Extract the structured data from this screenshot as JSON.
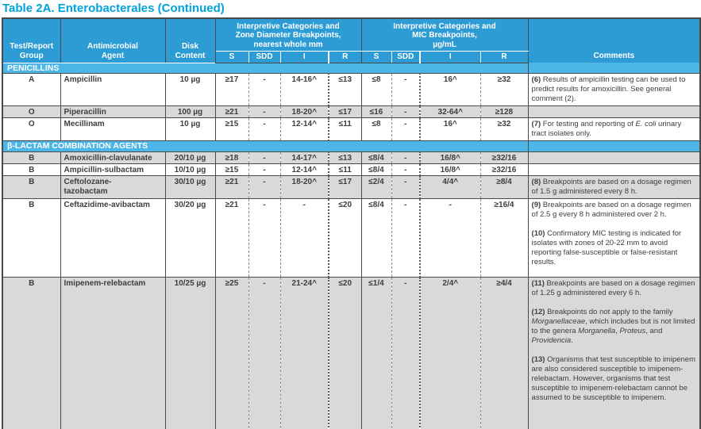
{
  "title": "Table 2A. Enterobacterales (Continued)",
  "colors": {
    "title_accent": "#00A3DC",
    "header_bg": "#2E9CD4",
    "section_bg": "#4DB6E8",
    "shaded_row_bg": "#D9D9D9",
    "border": "#4A4A4A",
    "body_text": "#3E3E3E"
  },
  "header": {
    "group": "Test/Report\nGroup",
    "agent": "Antimicrobial\nAgent",
    "disk": "Disk\nContent",
    "zone_group": "Interpretive Categories and\nZone Diameter Breakpoints,\nnearest whole mm",
    "mic_group": "Interpretive Categories and\nMIC Breakpoints,\nµg/mL",
    "sub": {
      "s": "S",
      "sdd": "SDD",
      "i": "I",
      "r": "R"
    },
    "comments": "Comments"
  },
  "sections": [
    {
      "label": "PENICILLINS",
      "rows": [
        {
          "group": "A",
          "agent": "Ampicillin",
          "disk": "10 µg",
          "zone": {
            "s": "≥17",
            "sdd": "-",
            "i": "14-16^",
            "r": "≤13"
          },
          "mic": {
            "s": "≤8",
            "sdd": "-",
            "i": "16^",
            "r": "≥32"
          },
          "comment": [
            [
              {
                "t": "(6)",
                "b": true
              },
              {
                "t": " Results of ampicillin testing can be used to predict results for amoxicillin. See general comment (2)."
              }
            ]
          ]
        },
        {
          "group": "O",
          "agent": "Piperacillin",
          "disk": "100 µg",
          "zone": {
            "s": "≥21",
            "sdd": "-",
            "i": "18-20^",
            "r": "≤17"
          },
          "mic": {
            "s": "≤16",
            "sdd": "-",
            "i": "32-64^",
            "r": "≥128"
          }
        },
        {
          "group": "O",
          "agent": "Mecillinam",
          "disk": "10 µg",
          "zone": {
            "s": "≥15",
            "sdd": "-",
            "i": "12-14^",
            "r": "≤11"
          },
          "mic": {
            "s": "≤8",
            "sdd": "-",
            "i": "16^",
            "r": "≥32"
          },
          "comment": [
            [
              {
                "t": "(7)",
                "b": true
              },
              {
                "t": " For testing and reporting of "
              },
              {
                "t": "E. coli",
                "i": true
              },
              {
                "t": " urinary tract isolates only."
              }
            ]
          ]
        }
      ]
    },
    {
      "label": "β-LACTAM COMBINATION AGENTS",
      "rows": [
        {
          "group": "B",
          "agent": "Amoxicillin-clavulanate",
          "disk": "20/10 µg",
          "zone": {
            "s": "≥18",
            "sdd": "-",
            "i": "14-17^",
            "r": "≤13"
          },
          "mic": {
            "s": "≤8/4",
            "sdd": "-",
            "i": "16/8^",
            "r": "≥32/16"
          }
        },
        {
          "group": "B",
          "agent": "Ampicillin-sulbactam",
          "disk": "10/10 µg",
          "zone": {
            "s": "≥15",
            "sdd": "-",
            "i": "12-14^",
            "r": "≤11"
          },
          "mic": {
            "s": "≤8/4",
            "sdd": "-",
            "i": "16/8^",
            "r": "≥32/16"
          }
        },
        {
          "group": "B",
          "agent": "Ceftolozane-\ntazobactam",
          "disk": "30/10 µg",
          "zone": {
            "s": "≥21",
            "sdd": "-",
            "i": "18-20^",
            "r": "≤17"
          },
          "mic": {
            "s": "≤2/4",
            "sdd": "-",
            "i": "4/4^",
            "r": "≥8/4"
          },
          "comment": [
            [
              {
                "t": "(8)",
                "b": true
              },
              {
                "t": " Breakpoints are based on a dosage regimen of 1.5 g administered every 8 h."
              }
            ]
          ]
        },
        {
          "group": "B",
          "agent": "Ceftazidime-avibactam",
          "disk": "30/20 µg",
          "zone": {
            "s": "≥21",
            "sdd": "-",
            "i": "-",
            "r": "≤20"
          },
          "mic": {
            "s": "≤8/4",
            "sdd": "-",
            "i": "-",
            "r": "≥16/4"
          },
          "comment": [
            [
              {
                "t": "(9)",
                "b": true
              },
              {
                "t": " Breakpoints are based on a dosage regimen of 2.5 g every 8 h administered over 2 h."
              }
            ],
            [
              {
                "t": "(10)",
                "b": true
              },
              {
                "t": " Confirmatory MIC testing is indicated for isolates with zones of 20-22 mm to avoid reporting false-susceptible or false-resistant results."
              }
            ]
          ]
        },
        {
          "group": "B",
          "agent": "Imipenem-relebactam",
          "disk": "10/25 µg",
          "zone": {
            "s": "≥25",
            "sdd": "-",
            "i": "21-24^",
            "r": "≤20"
          },
          "mic": {
            "s": "≤1/4",
            "sdd": "-",
            "i": "2/4^",
            "r": "≥4/4"
          },
          "comment": [
            [
              {
                "t": "(11)",
                "b": true
              },
              {
                "t": " Breakpoints are based on a dosage regimen of 1.25 g administered every 6 h."
              }
            ],
            [
              {
                "t": "(12)",
                "b": true
              },
              {
                "t": " Breakpoints do not apply to the family "
              },
              {
                "t": "Morganellaceae",
                "i": true
              },
              {
                "t": ", which includes but is not limited to the genera "
              },
              {
                "t": "Morganella",
                "i": true
              },
              {
                "t": ", "
              },
              {
                "t": "Proteus",
                "i": true
              },
              {
                "t": ", and "
              },
              {
                "t": "Providencia",
                "i": true
              },
              {
                "t": "."
              }
            ],
            [
              {
                "t": "(13)",
                "b": true
              },
              {
                "t": " Organisms that test susceptible to imipenem are also considered susceptible to imipenem-relebactam. However, organisms that test susceptible to imipenem-relebactam cannot be assumed to be susceptible to imipenem."
              }
            ]
          ]
        }
      ]
    }
  ]
}
